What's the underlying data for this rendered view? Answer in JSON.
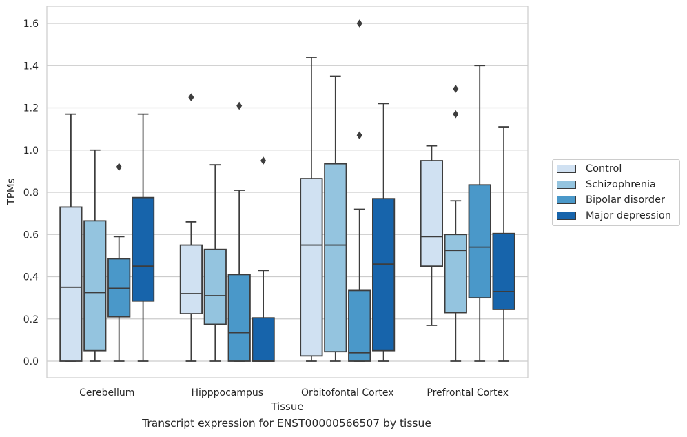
{
  "chart_data": {
    "type": "box",
    "title": "",
    "xlabel": "Tissue",
    "ylabel": "TPMs",
    "caption": "Transcript expression for ENST00000566507 by tissue",
    "ylim": [
      -0.08,
      1.68
    ],
    "yticks": [
      0.0,
      0.2,
      0.4,
      0.6,
      0.8,
      1.0,
      1.2,
      1.4,
      1.6
    ],
    "ytick_labels": [
      "0.0",
      "0.2",
      "0.4",
      "0.6",
      "0.8",
      "1.0",
      "1.2",
      "1.4",
      "1.6"
    ],
    "grid": "horizontal",
    "legend_placement": "right",
    "categories": [
      "Cerebellum",
      "Hipppocampus",
      "Orbitofontal Cortex",
      "Prefrontal Cortex"
    ],
    "series": [
      {
        "name": "Control",
        "color": "#d0e1f2",
        "boxes": [
          {
            "whislo": 0.0,
            "q1": 0.0,
            "med": 0.35,
            "q3": 0.73,
            "whishi": 1.17,
            "fliers": []
          },
          {
            "whislo": 0.0,
            "q1": 0.225,
            "med": 0.32,
            "q3": 0.55,
            "whishi": 0.66,
            "fliers": [
              1.25
            ]
          },
          {
            "whislo": 0.0,
            "q1": 0.025,
            "med": 0.55,
            "q3": 0.865,
            "whishi": 1.44,
            "fliers": []
          },
          {
            "whislo": 0.17,
            "q1": 0.45,
            "med": 0.59,
            "q3": 0.95,
            "whishi": 1.02,
            "fliers": []
          }
        ]
      },
      {
        "name": "Schizophrenia",
        "color": "#94c4df",
        "boxes": [
          {
            "whislo": 0.0,
            "q1": 0.05,
            "med": 0.325,
            "q3": 0.665,
            "whishi": 1.0,
            "fliers": []
          },
          {
            "whislo": 0.0,
            "q1": 0.175,
            "med": 0.31,
            "q3": 0.53,
            "whishi": 0.93,
            "fliers": []
          },
          {
            "whislo": 0.0,
            "q1": 0.045,
            "med": 0.55,
            "q3": 0.935,
            "whishi": 1.35,
            "fliers": []
          },
          {
            "whislo": 0.0,
            "q1": 0.23,
            "med": 0.525,
            "q3": 0.6,
            "whishi": 0.76,
            "fliers": [
              1.17,
              1.29
            ]
          }
        ]
      },
      {
        "name": "Bipolar disorder",
        "color": "#4a98c9",
        "boxes": [
          {
            "whislo": 0.0,
            "q1": 0.21,
            "med": 0.345,
            "q3": 0.485,
            "whishi": 0.59,
            "fliers": [
              0.92
            ]
          },
          {
            "whislo": 0.0,
            "q1": 0.0,
            "med": 0.135,
            "q3": 0.41,
            "whishi": 0.81,
            "fliers": [
              1.21
            ]
          },
          {
            "whislo": 0.0,
            "q1": 0.0,
            "med": 0.04,
            "q3": 0.335,
            "whishi": 0.72,
            "fliers": [
              1.07,
              1.6
            ]
          },
          {
            "whislo": 0.0,
            "q1": 0.3,
            "med": 0.54,
            "q3": 0.835,
            "whishi": 1.4,
            "fliers": []
          }
        ]
      },
      {
        "name": "Major depression",
        "color": "#1764ab",
        "boxes": [
          {
            "whislo": 0.0,
            "q1": 0.285,
            "med": 0.45,
            "q3": 0.775,
            "whishi": 1.17,
            "fliers": []
          },
          {
            "whislo": 0.0,
            "q1": 0.0,
            "med": 0.0,
            "q3": 0.205,
            "whishi": 0.43,
            "fliers": [
              0.95
            ]
          },
          {
            "whislo": 0.0,
            "q1": 0.05,
            "med": 0.46,
            "q3": 0.77,
            "whishi": 1.22,
            "fliers": []
          },
          {
            "whislo": 0.0,
            "q1": 0.245,
            "med": 0.33,
            "q3": 0.605,
            "whishi": 1.11,
            "fliers": []
          }
        ]
      }
    ]
  }
}
